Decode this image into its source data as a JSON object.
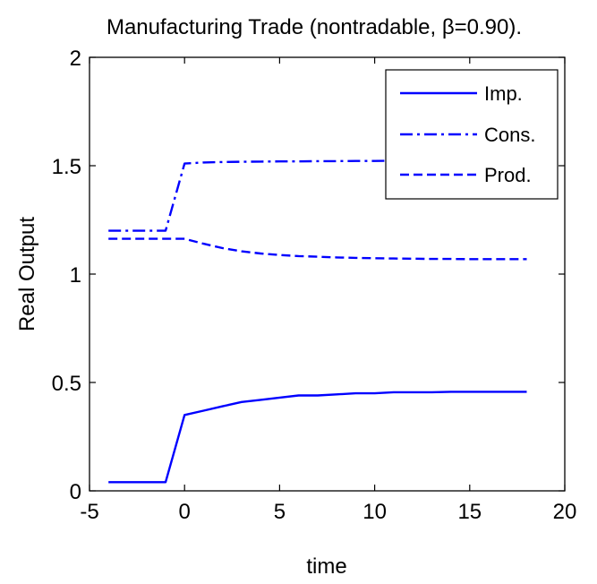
{
  "chart_data": {
    "type": "line",
    "title": "Manufacturing Trade (nontradable, β=0.90).",
    "xlabel": "time",
    "ylabel": "Real Output",
    "xlim": [
      -5,
      20
    ],
    "ylim": [
      0,
      2
    ],
    "xticks": [
      "-5",
      "0",
      "5",
      "10",
      "15",
      "20"
    ],
    "yticks": [
      "0",
      "0.5",
      "1",
      "1.5",
      "2"
    ],
    "grid": false,
    "legend_position": "top-right",
    "line_color": "#0000ff",
    "series": [
      {
        "name": "Imp.",
        "style": "solid",
        "x": [
          -4,
          -3,
          -2,
          -1,
          0,
          1,
          2,
          3,
          4,
          5,
          6,
          7,
          8,
          9,
          10,
          11,
          12,
          13,
          14,
          15,
          16,
          17,
          18
        ],
        "y": [
          0.04,
          0.04,
          0.04,
          0.04,
          0.35,
          0.37,
          0.39,
          0.41,
          0.42,
          0.43,
          0.44,
          0.44,
          0.445,
          0.45,
          0.45,
          0.455,
          0.455,
          0.455,
          0.457,
          0.457,
          0.457,
          0.457,
          0.457
        ]
      },
      {
        "name": "Cons.",
        "style": "dashdot",
        "x": [
          -4,
          -3,
          -2,
          -1,
          0,
          1,
          2,
          3,
          4,
          5,
          6,
          7,
          8,
          9,
          10,
          11,
          12,
          13,
          14,
          15,
          16,
          17,
          18
        ],
        "y": [
          1.2,
          1.2,
          1.2,
          1.2,
          1.51,
          1.515,
          1.517,
          1.518,
          1.519,
          1.52,
          1.52,
          1.521,
          1.521,
          1.522,
          1.522,
          1.523,
          1.523,
          1.524,
          1.524,
          1.524,
          1.525,
          1.525,
          1.525
        ]
      },
      {
        "name": "Prod.",
        "style": "dashed",
        "x": [
          -4,
          -3,
          -2,
          -1,
          0,
          1,
          2,
          3,
          4,
          5,
          6,
          7,
          8,
          9,
          10,
          11,
          12,
          13,
          14,
          15,
          16,
          17,
          18
        ],
        "y": [
          1.163,
          1.163,
          1.163,
          1.163,
          1.163,
          1.14,
          1.12,
          1.105,
          1.095,
          1.088,
          1.083,
          1.08,
          1.077,
          1.075,
          1.073,
          1.072,
          1.071,
          1.07,
          1.07,
          1.069,
          1.069,
          1.069,
          1.069
        ]
      }
    ]
  }
}
